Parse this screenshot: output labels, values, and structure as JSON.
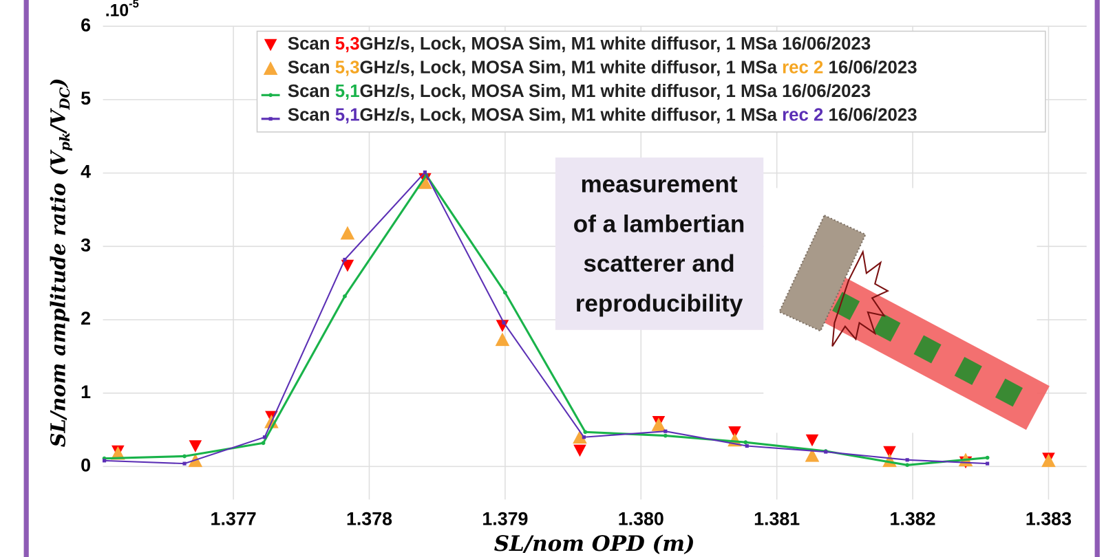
{
  "chart_data": {
    "type": "line",
    "y_multiplier": ".10",
    "y_multiplier_exp": "-5",
    "xlabel": "SL/nom OPD (m)",
    "ylabel_parts": [
      {
        "text": "SL/nom amplitude ratio ("
      },
      {
        "text": "V"
      },
      {
        "text": "pk",
        "sub": true
      },
      {
        "text": "/V"
      },
      {
        "text": "DC",
        "sub": true
      },
      {
        "text": ")"
      }
    ],
    "xlim": [
      1.37604,
      1.38328
    ],
    "ylim": [
      -0.45,
      6.0
    ],
    "xticks": [
      1.377,
      1.378,
      1.379,
      {
        "value": 1.38,
        "label": "1.380"
      },
      1.381,
      1.382,
      1.383
    ],
    "yticks": [
      0,
      1,
      2,
      3,
      4,
      5,
      6
    ],
    "grid": true,
    "legend": "top-right",
    "annotation": [
      "measurement",
      "of a lambertian",
      "scatterer and",
      "reproducibility"
    ],
    "series": [
      {
        "name_parts": [
          {
            "text": "Scan "
          },
          {
            "text": "5,3",
            "color": "#ff0000"
          },
          {
            "text": "GHz/s, Lock, MOSA Sim, M1 white diffusor, 1 MSa 16/06/2023"
          }
        ],
        "color": "#ff0000",
        "marker": "triangle-down",
        "line": false,
        "x": [
          1.37615,
          1.37672,
          1.37728,
          1.37784,
          1.37841,
          1.37898,
          1.37955,
          1.38013,
          1.38069,
          1.38126,
          1.38183,
          1.38239,
          1.383
        ],
        "values": [
          0.21,
          0.28,
          0.68,
          2.74,
          3.92,
          1.92,
          0.22,
          0.61,
          0.47,
          0.36,
          0.2,
          0.06,
          0.11
        ]
      },
      {
        "name_parts": [
          {
            "text": "Scan "
          },
          {
            "text": "5,3",
            "color": "#f5a623"
          },
          {
            "text": "GHz/s, Lock, MOSA Sim, M1 white diffusor, 1 MSa "
          },
          {
            "text": "rec 2",
            "color": "#f5a623"
          },
          {
            "text": " 16/06/2023"
          }
        ],
        "color": "#f7a93b",
        "marker": "triangle-up",
        "line": false,
        "x": [
          1.37615,
          1.37672,
          1.37728,
          1.37784,
          1.37841,
          1.37898,
          1.37955,
          1.38013,
          1.38069,
          1.38126,
          1.38183,
          1.38239,
          1.383
        ],
        "values": [
          0.18,
          0.08,
          0.61,
          3.18,
          3.87,
          1.73,
          0.4,
          0.57,
          0.36,
          0.15,
          0.08,
          0.09,
          0.08
        ]
      },
      {
        "name_parts": [
          {
            "text": "Scan "
          },
          {
            "text": "5,1",
            "color": "#19b34a"
          },
          {
            "text": "GHz/s, Lock, MOSA Sim, M1 white diffusor, 1 MSa 16/06/2023"
          }
        ],
        "color": "#19b34a",
        "marker": "dot",
        "line": true,
        "x": [
          1.37605,
          1.37664,
          1.37722,
          1.37782,
          1.37842,
          1.379,
          1.37959,
          1.38018,
          1.38077,
          1.38136,
          1.38196,
          1.38255
        ],
        "values": [
          0.11,
          0.14,
          0.32,
          2.32,
          3.97,
          2.37,
          0.47,
          0.42,
          0.33,
          0.21,
          0.02,
          0.12
        ]
      },
      {
        "name_parts": [
          {
            "text": "Scan "
          },
          {
            "text": "5,1",
            "color": "#5b2fb5"
          },
          {
            "text": "GHz/s, Lock, MOSA Sim, M1 white diffusor, 1 MSa "
          },
          {
            "text": "rec 2",
            "color": "#5b2fb5"
          },
          {
            "text": " 16/06/2023"
          }
        ],
        "color": "#5b2fb5",
        "marker": "square",
        "line": true,
        "x": [
          1.37605,
          1.37664,
          1.37723,
          1.37782,
          1.37841,
          1.37899,
          1.37958,
          1.38018,
          1.38078,
          1.38136,
          1.38196,
          1.38255
        ],
        "values": [
          0.08,
          0.04,
          0.4,
          2.82,
          4.01,
          1.96,
          0.4,
          0.48,
          0.28,
          0.2,
          0.09,
          0.04
        ]
      }
    ]
  }
}
